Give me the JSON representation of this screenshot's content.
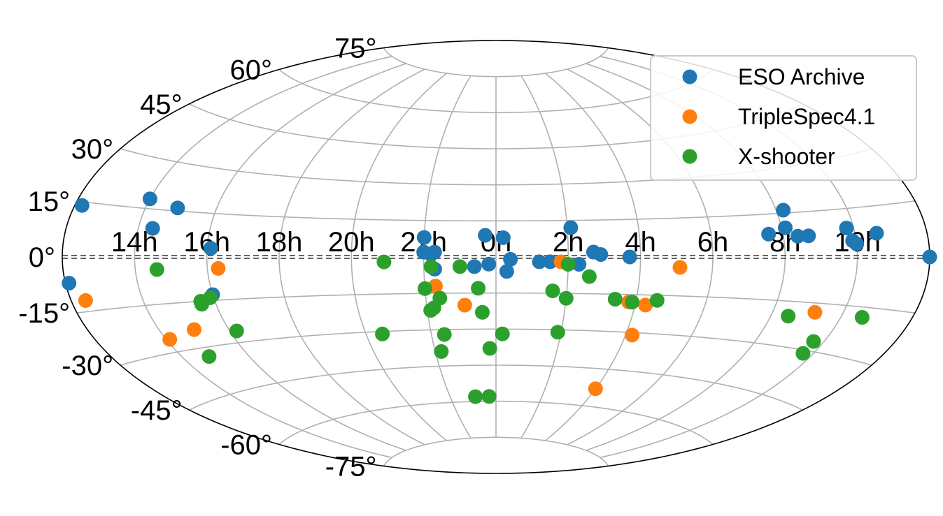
{
  "chart_data": {
    "type": "scatter",
    "projection": "aitoff",
    "grid": true,
    "legend_position": "top-right",
    "x_axis": {
      "unit": "hours of right ascension",
      "tick_labels": [
        "14h",
        "16h",
        "18h",
        "20h",
        "22h",
        "0h",
        "2h",
        "4h",
        "6h",
        "8h",
        "10h"
      ]
    },
    "y_axis": {
      "unit": "degrees of declination",
      "tick_labels": [
        "75°",
        "60°",
        "45°",
        "30°",
        "15°",
        "0°",
        "-15°",
        "-30°",
        "-45°",
        "-60°",
        "-75°"
      ]
    },
    "series": [
      {
        "name": "ESO Archive",
        "color": "#1f77b4",
        "points": [
          {
            "ra": 12.2,
            "dec": 14
          },
          {
            "ra": 14.0,
            "dec": 18
          },
          {
            "ra": 14.4,
            "dec": 9
          },
          {
            "ra": 14.9,
            "dec": 16
          },
          {
            "ra": 16.1,
            "dec": 3
          },
          {
            "ra": 12.0,
            "dec": 0
          },
          {
            "ra": 12.1,
            "dec": -7
          },
          {
            "ra": 16.0,
            "dec": -13
          },
          {
            "ra": 22.0,
            "dec": 8
          },
          {
            "ra": 22.0,
            "dec": 2
          },
          {
            "ra": 22.2,
            "dec": 1
          },
          {
            "ra": 22.3,
            "dec": 2
          },
          {
            "ra": 22.3,
            "dec": -5
          },
          {
            "ra": 23.7,
            "dec": 9
          },
          {
            "ra": 0.2,
            "dec": 8
          },
          {
            "ra": 23.4,
            "dec": -4
          },
          {
            "ra": 23.8,
            "dec": -3
          },
          {
            "ra": 0.4,
            "dec": -1
          },
          {
            "ra": 0.3,
            "dec": -6
          },
          {
            "ra": 1.2,
            "dec": -2
          },
          {
            "ra": 1.5,
            "dec": -2
          },
          {
            "ra": 2.1,
            "dec": 12
          },
          {
            "ra": 2.3,
            "dec": -3
          },
          {
            "ra": 2.7,
            "dec": 2
          },
          {
            "ra": 2.9,
            "dec": 1
          },
          {
            "ra": 3.7,
            "dec": 0
          },
          {
            "ra": 7.6,
            "dec": 8
          },
          {
            "ra": 8.1,
            "dec": 10
          },
          {
            "ra": 8.2,
            "dec": 16
          },
          {
            "ra": 8.4,
            "dec": 7
          },
          {
            "ra": 8.7,
            "dec": 7
          },
          {
            "ra": 9.8,
            "dec": 9
          },
          {
            "ra": 9.9,
            "dec": 5
          },
          {
            "ra": 10.0,
            "dec": 4
          },
          {
            "ra": 10.6,
            "dec": 7
          }
        ]
      },
      {
        "name": "TripleSpec4.1",
        "color": "#ff7f0e",
        "points": [
          {
            "ra": 12.4,
            "dec": -12
          },
          {
            "ra": 14.1,
            "dec": -26
          },
          {
            "ra": 15.0,
            "dec": -24
          },
          {
            "ra": 16.3,
            "dec": -4
          },
          {
            "ra": 22.3,
            "dec": -12
          },
          {
            "ra": 23.1,
            "dec": -20
          },
          {
            "ra": 1.8,
            "dec": -2
          },
          {
            "ra": 3.8,
            "dec": -18
          },
          {
            "ra": 4.3,
            "dec": -19
          },
          {
            "ra": 4.2,
            "dec": -31
          },
          {
            "ra": 5.1,
            "dec": -4
          },
          {
            "ra": 4.0,
            "dec": -53
          },
          {
            "ra": 9.2,
            "dec": -18
          }
        ]
      },
      {
        "name": "X-shooter",
        "color": "#2ca02c",
        "points": [
          {
            "ra": 14.6,
            "dec": -4
          },
          {
            "ra": 15.6,
            "dec": -15
          },
          {
            "ra": 15.6,
            "dec": -16
          },
          {
            "ra": 15.9,
            "dec": -14
          },
          {
            "ra": 16.2,
            "dec": -26
          },
          {
            "ra": 14.8,
            "dec": -33
          },
          {
            "ra": 20.9,
            "dec": -2
          },
          {
            "ra": 20.5,
            "dec": -31
          },
          {
            "ra": 22.2,
            "dec": -4
          },
          {
            "ra": 22.0,
            "dec": -13
          },
          {
            "ra": 22.4,
            "dec": -17
          },
          {
            "ra": 22.2,
            "dec": -21
          },
          {
            "ra": 22.1,
            "dec": -22
          },
          {
            "ra": 22.4,
            "dec": -32
          },
          {
            "ra": 22.2,
            "dec": -39
          },
          {
            "ra": 23.0,
            "dec": -4
          },
          {
            "ra": 23.5,
            "dec": -13
          },
          {
            "ra": 23.6,
            "dec": -23
          },
          {
            "ra": 0.2,
            "dec": -32
          },
          {
            "ra": 23.8,
            "dec": -38
          },
          {
            "ra": 23.1,
            "dec": -58
          },
          {
            "ra": 23.7,
            "dec": -58
          },
          {
            "ra": 1.6,
            "dec": -14
          },
          {
            "ra": 2.0,
            "dec": -3
          },
          {
            "ra": 2.0,
            "dec": -17
          },
          {
            "ra": 1.9,
            "dec": -31
          },
          {
            "ra": 2.6,
            "dec": -8
          },
          {
            "ra": 3.4,
            "dec": -17
          },
          {
            "ra": 3.9,
            "dec": -18
          },
          {
            "ra": 4.6,
            "dec": -17
          },
          {
            "ra": 8.5,
            "dec": -20
          },
          {
            "ra": 9.7,
            "dec": -27
          },
          {
            "ra": 9.7,
            "dec": -31
          },
          {
            "ra": 10.6,
            "dec": -18
          }
        ]
      }
    ]
  }
}
